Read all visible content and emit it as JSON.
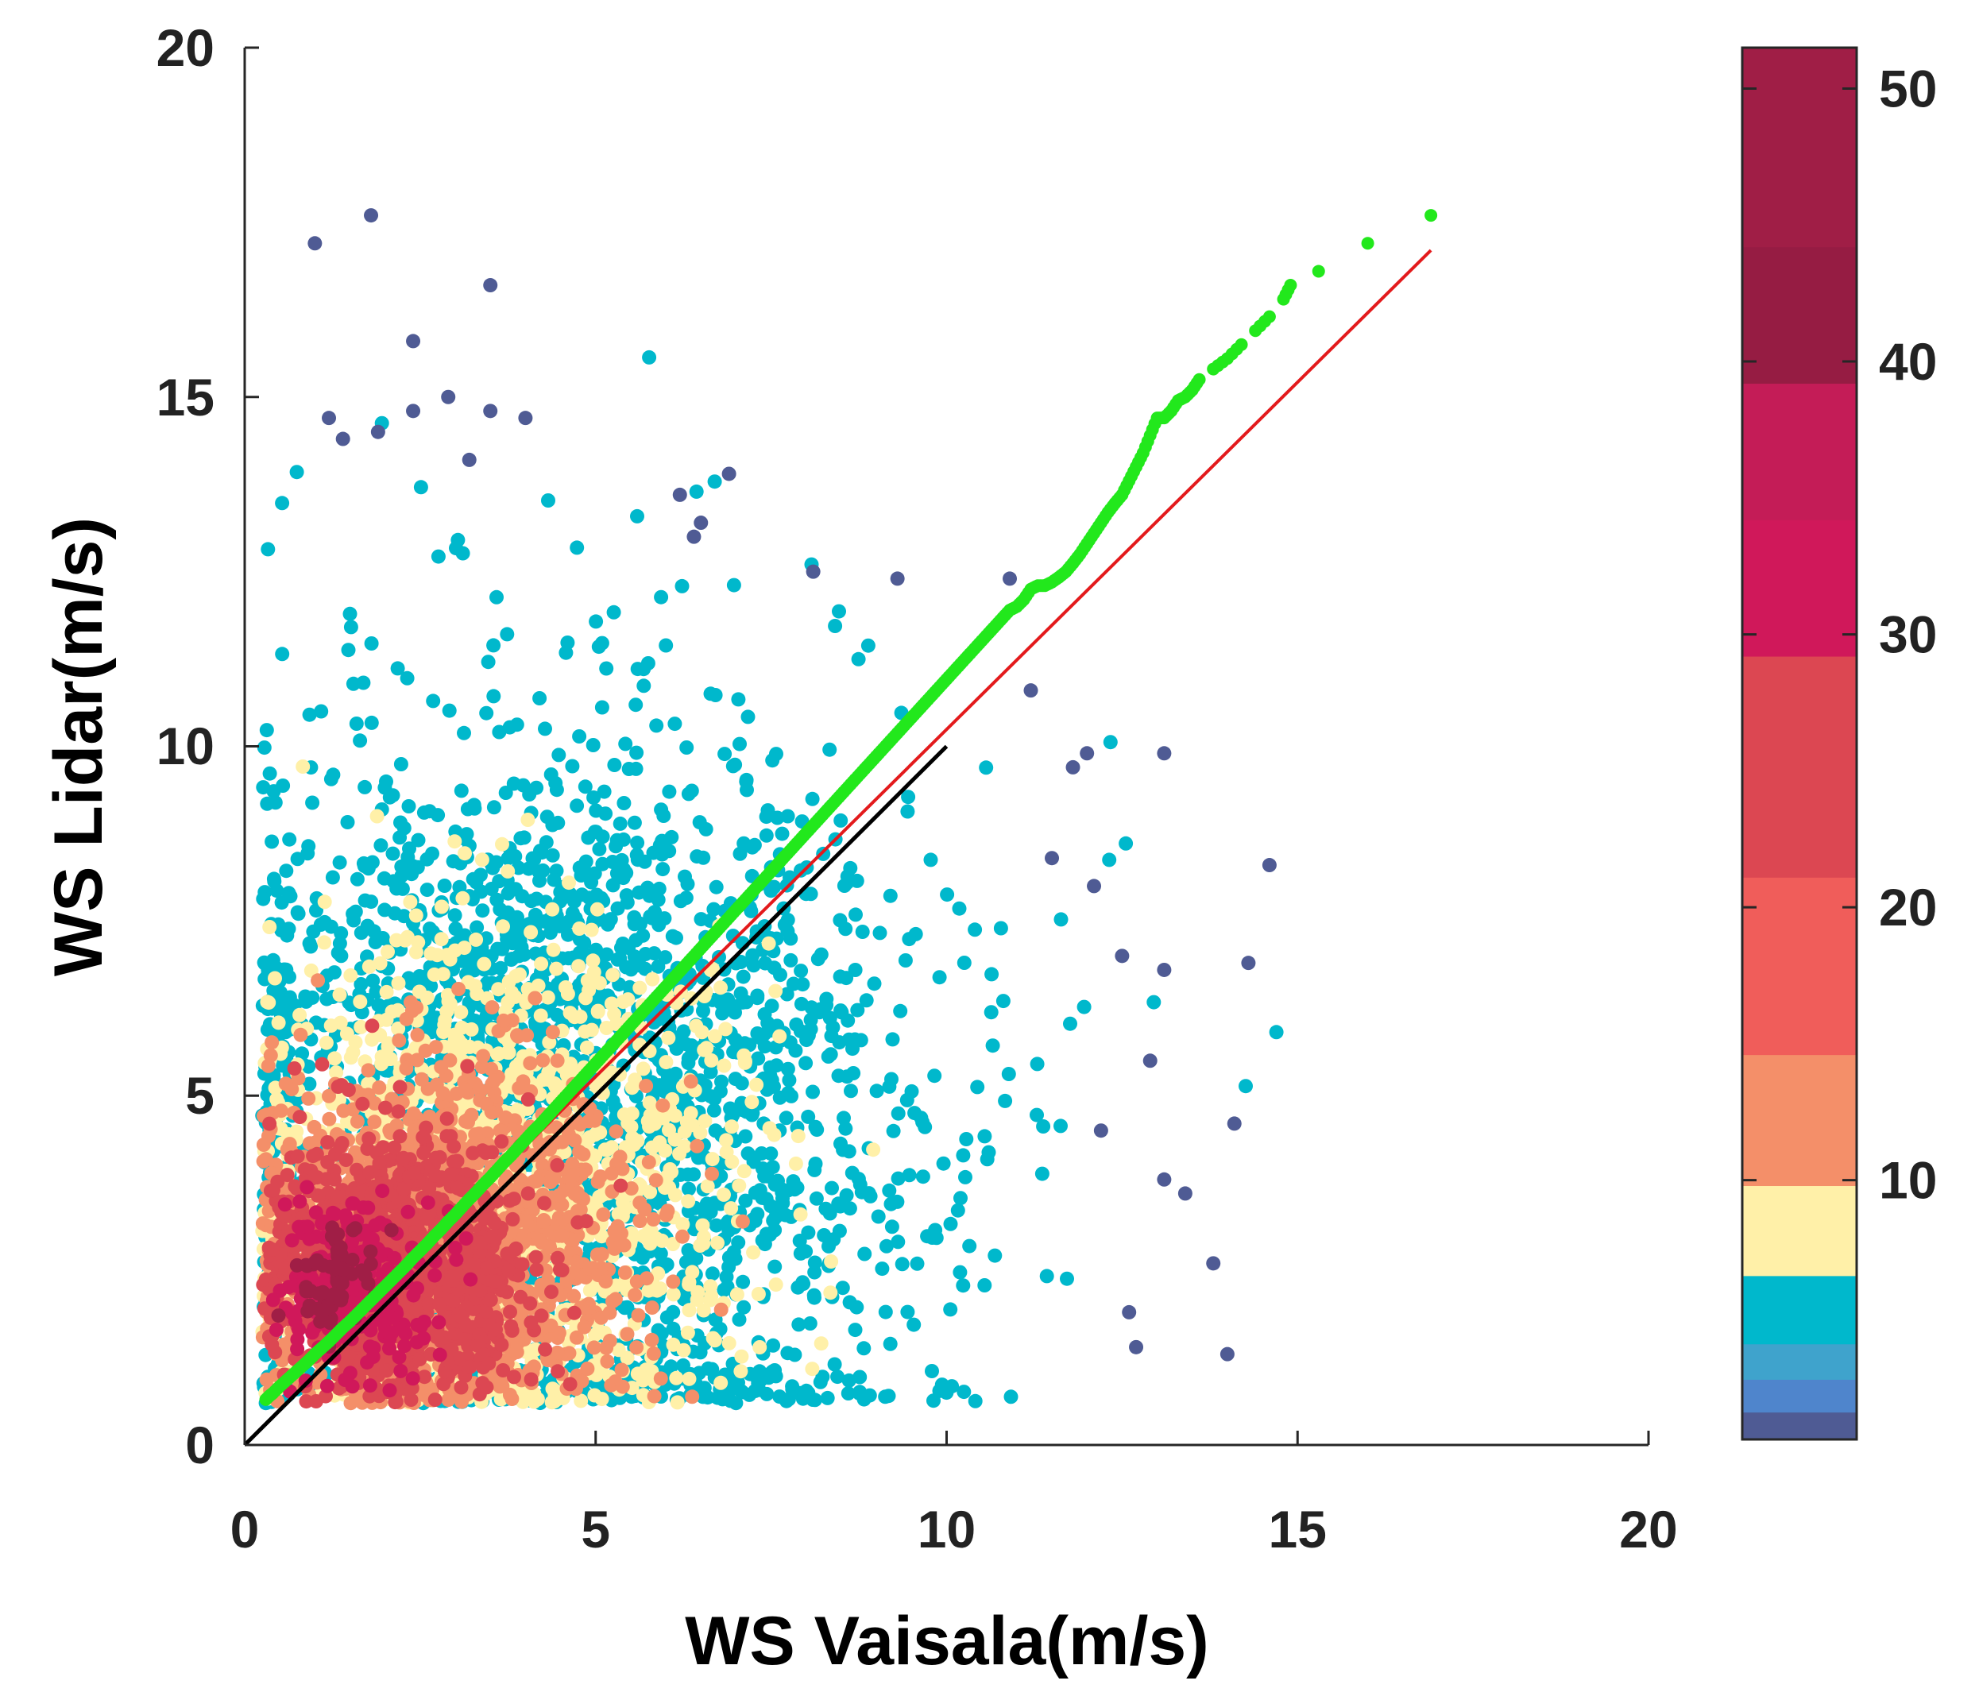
{
  "chart_data": {
    "type": "scatter",
    "title": "",
    "xlabel": "WS Vaisala(m/s)",
    "ylabel": "WS Lidar(m/s)",
    "xlim": [
      0,
      20
    ],
    "ylim": [
      0,
      20
    ],
    "xticks": [
      "0",
      "5",
      "10",
      "15",
      "20"
    ],
    "yticks": [
      "0",
      "5",
      "10",
      "15",
      "20"
    ],
    "grid": false,
    "description": "Density-colored scatter of lidar vs. Vaisala wind speed, with quantile-quantile points, fitted line and 1:1 reference line",
    "density_clusters": [
      {
        "density": 4,
        "cx": 4.5,
        "cy": 4.5,
        "sx": 2.6,
        "sy": 2.9,
        "count": 2600
      },
      {
        "density": 8,
        "cx": 3.4,
        "cy": 3.6,
        "sx": 1.7,
        "sy": 1.8,
        "count": 1400
      },
      {
        "density": 12,
        "cx": 2.8,
        "cy": 3.0,
        "sx": 1.3,
        "sy": 1.2,
        "count": 1500
      },
      {
        "density": 22,
        "cx": 2.2,
        "cy": 2.6,
        "sx": 0.9,
        "sy": 0.9,
        "count": 1100
      },
      {
        "density": 34,
        "cx": 1.6,
        "cy": 2.3,
        "sx": 0.5,
        "sy": 0.6,
        "count": 260
      },
      {
        "density": 46,
        "cx": 1.3,
        "cy": 2.4,
        "sx": 0.25,
        "sy": 0.35,
        "count": 60
      }
    ],
    "sparse_points": [
      {
        "x": 1.8,
        "y": 17.6
      },
      {
        "x": 1.0,
        "y": 17.2
      },
      {
        "x": 3.5,
        "y": 16.6
      },
      {
        "x": 2.4,
        "y": 15.8
      },
      {
        "x": 1.2,
        "y": 14.7
      },
      {
        "x": 1.4,
        "y": 14.4
      },
      {
        "x": 1.9,
        "y": 14.5
      },
      {
        "x": 2.4,
        "y": 14.8
      },
      {
        "x": 2.9,
        "y": 15.0
      },
      {
        "x": 3.5,
        "y": 14.8
      },
      {
        "x": 4.0,
        "y": 14.7
      },
      {
        "x": 3.2,
        "y": 14.1
      },
      {
        "x": 6.2,
        "y": 13.6
      },
      {
        "x": 6.9,
        "y": 13.9
      },
      {
        "x": 6.5,
        "y": 13.2
      },
      {
        "x": 6.4,
        "y": 13.0
      },
      {
        "x": 8.1,
        "y": 12.5
      },
      {
        "x": 9.3,
        "y": 12.4
      },
      {
        "x": 10.9,
        "y": 12.4
      },
      {
        "x": 11.2,
        "y": 10.8
      },
      {
        "x": 11.8,
        "y": 9.7
      },
      {
        "x": 13.1,
        "y": 9.9
      },
      {
        "x": 12.0,
        "y": 9.9
      },
      {
        "x": 14.6,
        "y": 8.3
      },
      {
        "x": 14.3,
        "y": 6.9
      },
      {
        "x": 13.1,
        "y": 6.8
      },
      {
        "x": 14.1,
        "y": 4.6
      },
      {
        "x": 14.0,
        "y": 1.3
      },
      {
        "x": 13.8,
        "y": 2.6
      },
      {
        "x": 13.4,
        "y": 3.6
      },
      {
        "x": 12.7,
        "y": 1.4
      },
      {
        "x": 13.1,
        "y": 3.8
      },
      {
        "x": 12.6,
        "y": 1.9
      },
      {
        "x": 12.2,
        "y": 4.5
      },
      {
        "x": 12.9,
        "y": 5.5
      },
      {
        "x": 12.5,
        "y": 7.0
      },
      {
        "x": 11.5,
        "y": 8.4
      },
      {
        "x": 12.1,
        "y": 8.0
      }
    ],
    "qq_points": {
      "color": "#22e81c",
      "x": [
        0.3,
        0.35,
        0.4,
        0.5,
        0.6,
        0.7,
        0.8,
        0.9,
        1.0,
        1.1,
        1.2,
        1.3,
        1.4,
        1.5,
        1.6,
        1.7,
        1.8,
        1.9,
        2.0,
        2.1,
        2.2,
        2.3,
        2.4,
        2.5,
        2.6,
        2.7,
        2.8,
        2.9,
        3.0,
        3.1,
        3.2,
        3.3,
        3.4,
        3.5,
        3.6,
        3.7,
        3.8,
        3.9,
        4.0,
        4.1,
        4.2,
        4.3,
        4.4,
        4.5,
        4.6,
        4.7,
        4.8,
        4.9,
        5.0,
        5.1,
        5.2,
        5.3,
        5.4,
        5.5,
        5.6,
        5.7,
        5.8,
        5.9,
        6.0,
        6.1,
        6.2,
        6.3,
        6.4,
        6.5,
        6.6,
        6.7,
        6.8,
        6.9,
        7.0,
        7.1,
        7.2,
        7.3,
        7.4,
        7.5,
        7.6,
        7.7,
        7.8,
        7.9,
        8.0,
        8.1,
        8.2,
        8.3,
        8.4,
        8.5,
        8.6,
        8.7,
        8.8,
        8.9,
        9.0,
        9.1,
        9.2,
        9.3,
        9.4,
        9.5,
        9.6,
        9.7,
        9.8,
        9.9,
        10.0,
        10.1,
        10.2,
        10.3,
        10.4,
        10.5,
        10.6,
        10.7,
        10.8,
        10.9,
        11.0,
        11.1,
        11.2,
        11.3,
        11.4,
        11.5,
        11.6,
        11.7,
        11.8,
        11.9,
        12.0,
        12.1,
        12.2,
        12.3,
        12.4,
        12.5,
        12.6,
        12.7,
        12.8,
        12.9,
        13.0,
        13.1,
        13.2,
        13.3,
        13.4,
        13.5,
        13.6,
        13.8,
        14.0,
        14.2,
        14.4,
        14.6,
        14.8,
        14.9,
        15.3,
        16.0,
        16.9
      ],
      "y": [
        0.65,
        0.7,
        0.74,
        0.84,
        0.93,
        1.02,
        1.11,
        1.2,
        1.3,
        1.39,
        1.48,
        1.58,
        1.68,
        1.77,
        1.87,
        1.97,
        2.07,
        2.17,
        2.27,
        2.37,
        2.47,
        2.57,
        2.68,
        2.78,
        2.88,
        2.99,
        3.09,
        3.2,
        3.3,
        3.41,
        3.52,
        3.62,
        3.73,
        3.83,
        3.94,
        4.05,
        4.15,
        4.26,
        4.37,
        4.48,
        4.58,
        4.69,
        4.8,
        4.91,
        5.02,
        5.13,
        5.24,
        5.35,
        5.46,
        5.57,
        5.68,
        5.79,
        5.9,
        6.01,
        6.12,
        6.23,
        6.34,
        6.45,
        6.56,
        6.67,
        6.78,
        6.89,
        7.0,
        7.11,
        7.22,
        7.33,
        7.44,
        7.55,
        7.66,
        7.77,
        7.88,
        7.99,
        8.1,
        8.21,
        8.32,
        8.43,
        8.54,
        8.65,
        8.76,
        8.87,
        8.98,
        9.09,
        9.2,
        9.31,
        9.42,
        9.53,
        9.64,
        9.75,
        9.86,
        9.97,
        10.08,
        10.19,
        10.3,
        10.41,
        10.52,
        10.63,
        10.74,
        10.85,
        10.96,
        11.07,
        11.18,
        11.29,
        11.4,
        11.51,
        11.62,
        11.73,
        11.84,
        11.95,
        12.0,
        12.1,
        12.25,
        12.3,
        12.3,
        12.35,
        12.42,
        12.5,
        12.62,
        12.75,
        12.9,
        13.05,
        13.2,
        13.35,
        13.48,
        13.6,
        13.8,
        14.0,
        14.2,
        14.45,
        14.7,
        14.7,
        14.8,
        14.95,
        15.0,
        15.1,
        15.25,
        15.4,
        15.55,
        15.75,
        15.95,
        16.15,
        16.4,
        16.6,
        16.8,
        17.2,
        17.6
      ]
    },
    "fit_line": {
      "color": "#e31a1c",
      "x": [
        0.3,
        16.9
      ],
      "y": [
        0.6,
        17.1
      ]
    },
    "reference_line": {
      "color": "#000000",
      "x": [
        0,
        10
      ],
      "y": [
        0,
        10
      ]
    },
    "colorbar": {
      "ticks": [
        "10",
        "20",
        "30",
        "40",
        "50"
      ],
      "tick_values": [
        10,
        20,
        30,
        40,
        50
      ],
      "range": [
        0.5,
        51.5
      ],
      "bands": [
        {
          "from": 0.5,
          "to": 1.5,
          "color": "#4f5b94"
        },
        {
          "from": 1.5,
          "to": 2.7,
          "color": "#4f85cc"
        },
        {
          "from": 2.7,
          "to": 4.0,
          "color": "#3fa3cc"
        },
        {
          "from": 4.0,
          "to": 6.5,
          "color": "#00b8cc"
        },
        {
          "from": 6.5,
          "to": 9.8,
          "color": "#fff0a8"
        },
        {
          "from": 9.8,
          "to": 14.6,
          "color": "#f48f69"
        },
        {
          "from": 14.6,
          "to": 21.1,
          "color": "#f05d5a"
        },
        {
          "from": 21.1,
          "to": 29.2,
          "color": "#dc4752"
        },
        {
          "from": 29.2,
          "to": 34.2,
          "color": "#d0185a"
        },
        {
          "from": 34.2,
          "to": 39.2,
          "color": "#c41c57"
        },
        {
          "from": 39.2,
          "to": 44.2,
          "color": "#961c43"
        },
        {
          "from": 44.2,
          "to": 51.5,
          "color": "#a01e46"
        }
      ]
    }
  }
}
